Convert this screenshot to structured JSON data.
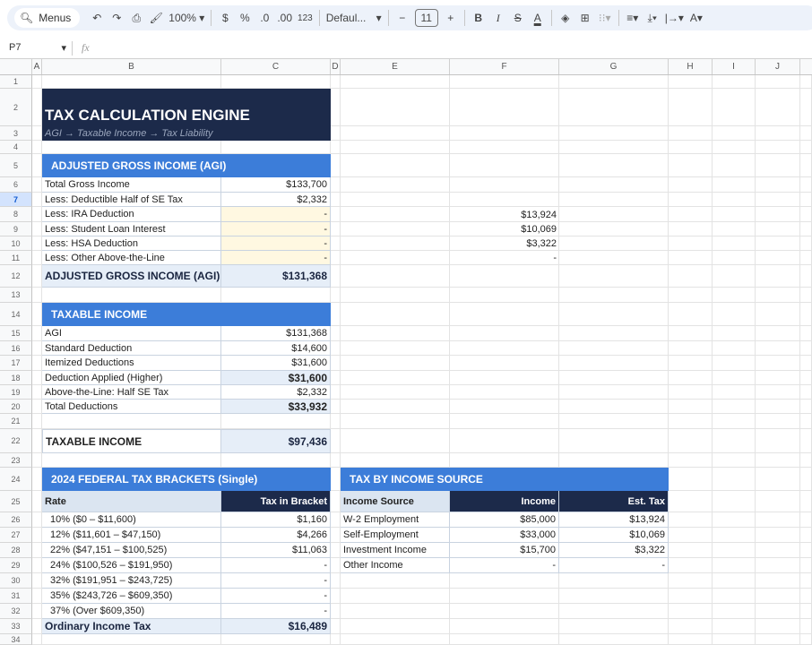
{
  "toolbar": {
    "menus": "Menus",
    "zoom": "100%",
    "currency": "$",
    "percent": "%",
    "dec_less": ".0",
    "dec_more": ".00",
    "format_123": "123",
    "font": "Defaul...",
    "font_size": "11",
    "bold": "B",
    "italic": "I",
    "strike": "S",
    "text_color": "A"
  },
  "formula_bar": {
    "cell_ref": "P7",
    "fx": "fx",
    "value": ""
  },
  "columns": [
    "A",
    "B",
    "C",
    "D",
    "E",
    "F",
    "G",
    "H",
    "I",
    "J"
  ],
  "rows": [
    "1",
    "2",
    "3",
    "4",
    "5",
    "6",
    "7",
    "8",
    "9",
    "10",
    "11",
    "12",
    "13",
    "14",
    "15",
    "16",
    "17",
    "18",
    "19",
    "20",
    "21",
    "22",
    "23",
    "24",
    "25",
    "26",
    "27",
    "28",
    "29",
    "30",
    "31",
    "32",
    "33",
    "34"
  ],
  "title": "TAX CALCULATION ENGINE",
  "subtitle": "AGI → Taxable Income → Tax Liability",
  "agi": {
    "header": "ADJUSTED GROSS INCOME (AGI)",
    "items": [
      {
        "label": "Total Gross Income",
        "value": "$133,700"
      },
      {
        "label": "Less: Deductible Half of SE Tax",
        "value": "$2,332"
      },
      {
        "label": "Less: IRA Deduction",
        "value": "-"
      },
      {
        "label": "Less: Student Loan Interest",
        "value": "-"
      },
      {
        "label": "Less: HSA Deduction",
        "value": "-"
      },
      {
        "label": "Less: Other Above-the-Line",
        "value": "-"
      }
    ],
    "total_label": "ADJUSTED GROSS INCOME (AGI)",
    "total_value": "$131,368"
  },
  "side_values": [
    "$13,924",
    "$10,069",
    "$3,322",
    "-"
  ],
  "taxable": {
    "header": "TAXABLE INCOME",
    "items": [
      {
        "label": "AGI",
        "value": "$131,368"
      },
      {
        "label": "Standard Deduction",
        "value": "$14,600"
      },
      {
        "label": "Itemized Deductions",
        "value": "$31,600"
      },
      {
        "label": "Deduction Applied (Higher)",
        "value": "$31,600"
      },
      {
        "label": "Above-the-Line: Half SE Tax",
        "value": "$2,332"
      },
      {
        "label": "Total Deductions",
        "value": "$33,932"
      }
    ],
    "total_label": "TAXABLE INCOME",
    "total_value": "$97,436"
  },
  "brackets": {
    "header": "2024 FEDERAL TAX BRACKETS (Single)",
    "col_rate": "Rate",
    "col_tax": "Tax in Bracket",
    "items": [
      {
        "label": "10%  ($0 – $11,600)",
        "value": "$1,160"
      },
      {
        "label": "12%  ($11,601 – $47,150)",
        "value": "$4,266"
      },
      {
        "label": "22%  ($47,151 – $100,525)",
        "value": "$11,063"
      },
      {
        "label": "24%  ($100,526 – $191,950)",
        "value": "-"
      },
      {
        "label": "32%  ($191,951 – $243,725)",
        "value": "-"
      },
      {
        "label": "35%  ($243,726 – $609,350)",
        "value": "-"
      },
      {
        "label": "37%  (Over $609,350)",
        "value": "-"
      }
    ],
    "total_label": "Ordinary Income Tax",
    "total_value": "$16,489"
  },
  "by_source": {
    "header": "TAX BY INCOME SOURCE",
    "col_source": "Income Source",
    "col_income": "Income",
    "col_tax": "Est. Tax",
    "items": [
      {
        "source": "W-2 Employment",
        "income": "$85,000",
        "tax": "$13,924"
      },
      {
        "source": "Self-Employment",
        "income": "$33,000",
        "tax": "$10,069"
      },
      {
        "source": "Investment Income",
        "income": "$15,700",
        "tax": "$3,322"
      },
      {
        "source": "Other Income",
        "income": "-",
        "tax": "-"
      }
    ]
  },
  "colors": {
    "navy": "#1c2a4a",
    "blue": "#3c7dd9",
    "light": "#e6eef8",
    "input": "#fff8e1"
  }
}
